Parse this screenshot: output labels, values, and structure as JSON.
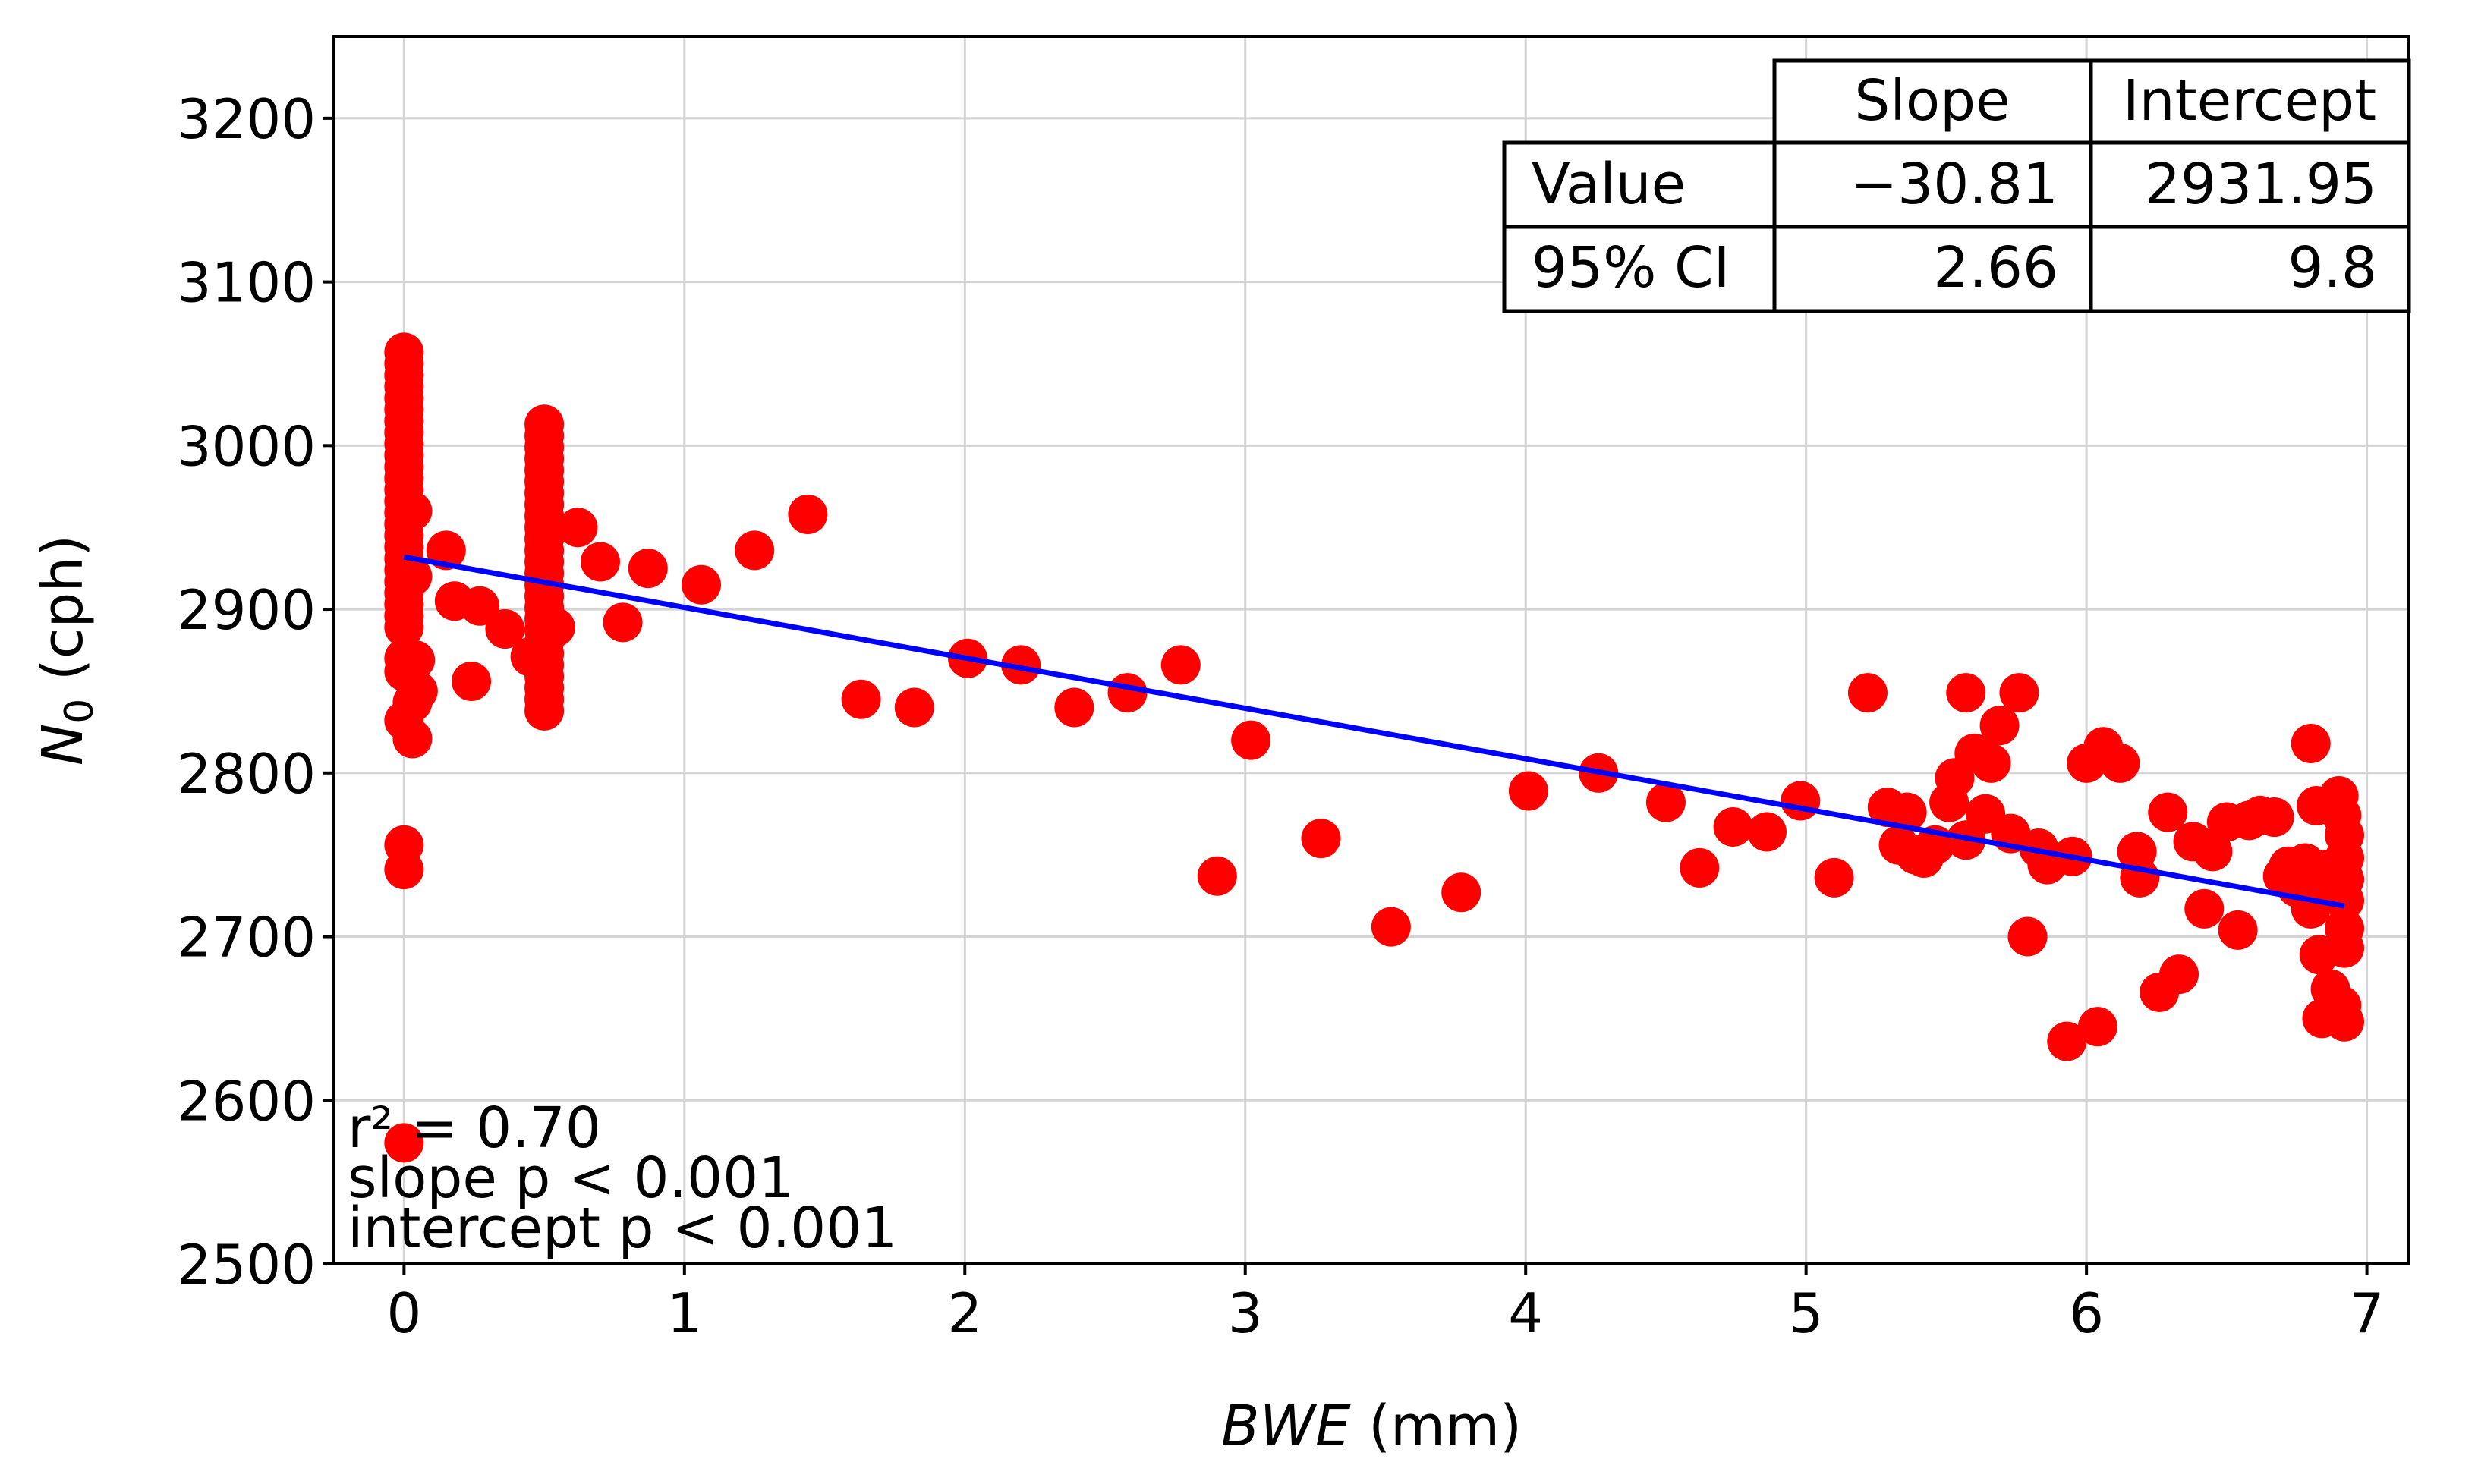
{
  "chart_data": {
    "type": "scatter",
    "title": "",
    "xlabel_italic": "BWE",
    "xlabel_unit": " (mm)",
    "ylabel_main": "N",
    "ylabel_sub": "0",
    "ylabel_unit": " (cph)",
    "xlim": [
      -0.25,
      7.15
    ],
    "ylim": [
      2500,
      3250
    ],
    "xticks": [
      0,
      1,
      2,
      3,
      4,
      5,
      6,
      7
    ],
    "yticks": [
      2500,
      2600,
      2700,
      2800,
      2900,
      3000,
      3100,
      3200
    ],
    "grid": true,
    "marker_color": "#ff0000",
    "line_color": "#0000ff",
    "series": [
      {
        "name": "observations",
        "points": [
          [
            0,
            3057
          ],
          [
            0,
            3050
          ],
          [
            0,
            3043
          ],
          [
            0,
            3036
          ],
          [
            0,
            3029
          ],
          [
            0,
            3022
          ],
          [
            0,
            3015
          ],
          [
            0,
            3008
          ],
          [
            0,
            3001
          ],
          [
            0,
            2994
          ],
          [
            0,
            2987
          ],
          [
            0,
            2980
          ],
          [
            0,
            2973
          ],
          [
            0,
            2966
          ],
          [
            0,
            2959
          ],
          [
            0,
            2952
          ],
          [
            0,
            2945
          ],
          [
            0,
            2938
          ],
          [
            0,
            2931
          ],
          [
            0,
            2924
          ],
          [
            0,
            2917
          ],
          [
            0,
            2910
          ],
          [
            0,
            2903
          ],
          [
            0,
            2896
          ],
          [
            0,
            2889
          ],
          [
            0,
            2870
          ],
          [
            0,
            2862
          ],
          [
            0,
            2832
          ],
          [
            0,
            2756
          ],
          [
            0,
            2741
          ],
          [
            0,
            2574
          ],
          [
            0.03,
            2960
          ],
          [
            0.03,
            2920
          ],
          [
            0.04,
            2869
          ],
          [
            0.03,
            2843
          ],
          [
            0.03,
            2821
          ],
          [
            0.05,
            2850
          ],
          [
            0.15,
            2936
          ],
          [
            0.18,
            2905
          ],
          [
            0.27,
            2902
          ],
          [
            0.24,
            2856
          ],
          [
            0.36,
            2888
          ],
          [
            0.45,
            2871
          ],
          [
            0.5,
            3013
          ],
          [
            0.5,
            3006
          ],
          [
            0.5,
            2999
          ],
          [
            0.5,
            2992
          ],
          [
            0.5,
            2985
          ],
          [
            0.5,
            2978
          ],
          [
            0.5,
            2971
          ],
          [
            0.5,
            2964
          ],
          [
            0.5,
            2957
          ],
          [
            0.5,
            2950
          ],
          [
            0.5,
            2943
          ],
          [
            0.5,
            2936
          ],
          [
            0.5,
            2929
          ],
          [
            0.5,
            2922
          ],
          [
            0.5,
            2915
          ],
          [
            0.5,
            2908
          ],
          [
            0.5,
            2901
          ],
          [
            0.5,
            2894
          ],
          [
            0.5,
            2887
          ],
          [
            0.5,
            2880
          ],
          [
            0.5,
            2873
          ],
          [
            0.5,
            2866
          ],
          [
            0.5,
            2859
          ],
          [
            0.5,
            2852
          ],
          [
            0.5,
            2845
          ],
          [
            0.5,
            2838
          ],
          [
            0.54,
            2889
          ],
          [
            0.62,
            2950
          ],
          [
            0.7,
            2929
          ],
          [
            0.78,
            2892
          ],
          [
            0.87,
            2925
          ],
          [
            1.06,
            2915
          ],
          [
            1.25,
            2936
          ],
          [
            1.44,
            2958
          ],
          [
            1.63,
            2845
          ],
          [
            1.82,
            2840
          ],
          [
            2.01,
            2870
          ],
          [
            2.2,
            2866
          ],
          [
            2.39,
            2840
          ],
          [
            2.58,
            2849
          ],
          [
            2.77,
            2866
          ],
          [
            2.9,
            2737
          ],
          [
            3.02,
            2820
          ],
          [
            3.27,
            2760
          ],
          [
            3.52,
            2706
          ],
          [
            3.77,
            2727
          ],
          [
            4.01,
            2789
          ],
          [
            4.26,
            2800
          ],
          [
            4.5,
            2782
          ],
          [
            4.62,
            2742
          ],
          [
            4.74,
            2767
          ],
          [
            4.86,
            2764
          ],
          [
            4.98,
            2783
          ],
          [
            5.1,
            2736
          ],
          [
            5.22,
            2849
          ],
          [
            5.29,
            2779
          ],
          [
            5.33,
            2756
          ],
          [
            5.36,
            2776
          ],
          [
            5.39,
            2750
          ],
          [
            5.42,
            2748
          ],
          [
            5.46,
            2756
          ],
          [
            5.51,
            2782
          ],
          [
            5.53,
            2797
          ],
          [
            5.57,
            2849
          ],
          [
            5.57,
            2759
          ],
          [
            5.6,
            2812
          ],
          [
            5.64,
            2775
          ],
          [
            5.66,
            2806
          ],
          [
            5.69,
            2829
          ],
          [
            5.73,
            2763
          ],
          [
            5.76,
            2849
          ],
          [
            5.79,
            2700
          ],
          [
            5.83,
            2754
          ],
          [
            5.86,
            2744
          ],
          [
            5.93,
            2636
          ],
          [
            5.95,
            2749
          ],
          [
            6.0,
            2806
          ],
          [
            6.04,
            2645
          ],
          [
            6.06,
            2816
          ],
          [
            6.12,
            2806
          ],
          [
            6.18,
            2752
          ],
          [
            6.19,
            2736
          ],
          [
            6.26,
            2666
          ],
          [
            6.29,
            2776
          ],
          [
            6.33,
            2677
          ],
          [
            6.38,
            2758
          ],
          [
            6.42,
            2717
          ],
          [
            6.45,
            2752
          ],
          [
            6.5,
            2770
          ],
          [
            6.54,
            2704
          ],
          [
            6.58,
            2771
          ],
          [
            6.62,
            2774
          ],
          [
            6.67,
            2773
          ],
          [
            6.7,
            2737
          ],
          [
            6.72,
            2743
          ],
          [
            6.75,
            2730
          ],
          [
            6.78,
            2745
          ],
          [
            6.8,
            2818
          ],
          [
            6.8,
            2717
          ],
          [
            6.82,
            2780
          ],
          [
            6.83,
            2689
          ],
          [
            6.84,
            2650
          ],
          [
            6.85,
            2741
          ],
          [
            6.86,
            2727
          ],
          [
            6.87,
            2668
          ],
          [
            6.9,
            2786
          ],
          [
            6.91,
            2774
          ],
          [
            6.92,
            2762
          ],
          [
            6.92,
            2748
          ],
          [
            6.92,
            2735
          ],
          [
            6.92,
            2722
          ],
          [
            6.92,
            2705
          ],
          [
            6.92,
            2693
          ],
          [
            6.91,
            2658
          ],
          [
            6.92,
            2648
          ]
        ]
      }
    ],
    "fit_line": {
      "x": [
        0,
        6.92
      ],
      "y": [
        2931.95,
        2718.7
      ]
    },
    "table": {
      "col_labels": [
        "Slope",
        "Intercept"
      ],
      "rows": [
        {
          "label": "Value",
          "cells": [
            "−30.81",
            "2931.95"
          ]
        },
        {
          "label": "95% CI",
          "cells": [
            "2.66",
            "9.8"
          ]
        }
      ]
    },
    "annotations": [
      "r² = 0.70",
      "slope p < 0.001",
      "intercept p < 0.001"
    ]
  }
}
